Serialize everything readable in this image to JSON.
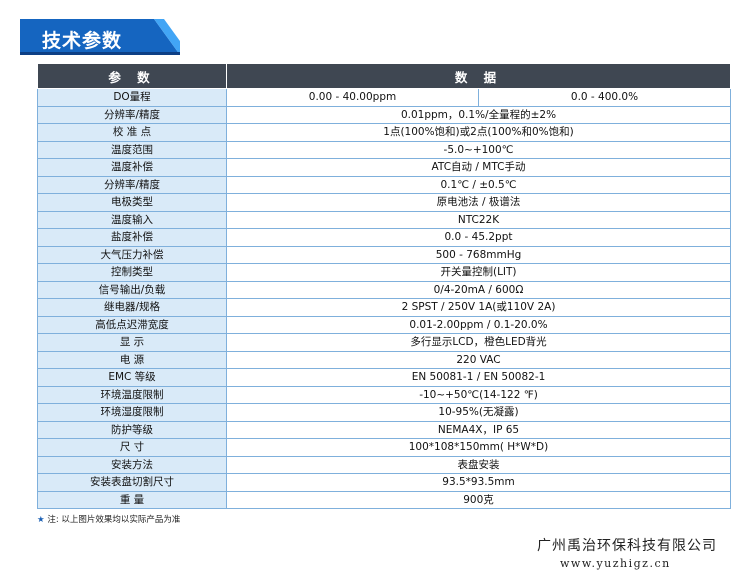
{
  "title": "技术参数",
  "table": {
    "headers": [
      "参  数",
      "数  据"
    ],
    "do_range": {
      "label": "DO量程",
      "value1": "0.00 - 40.00ppm",
      "value2": "0.0 - 400.0%"
    },
    "rows": [
      {
        "label": "分辨率/精度",
        "value": "0.01ppm，0.1%/全量程的±2%"
      },
      {
        "label": "校 准 点",
        "value": "1点(100%饱和)或2点(100%和0%饱和)"
      },
      {
        "label": "温度范围",
        "value": "-5.0~+100℃"
      },
      {
        "label": "温度补偿",
        "value": "ATC自动 / MTC手动"
      },
      {
        "label": "分辨率/精度",
        "value": "0.1℃ / ±0.5℃"
      },
      {
        "label": "电极类型",
        "value": "原电池法 / 极谱法"
      },
      {
        "label": "温度输入",
        "value": "NTC22K"
      },
      {
        "label": "盐度补偿",
        "value": "0.0 - 45.2ppt"
      },
      {
        "label": "大气压力补偿",
        "value": "500 - 768mmHg"
      },
      {
        "label": "控制类型",
        "value": "开关量控制(LIT)"
      },
      {
        "label": "信号输出/负载",
        "value": "0/4-20mA / 600Ω"
      },
      {
        "label": "继电器/规格",
        "value": "2 SPST / 250V 1A(或110V 2A)"
      },
      {
        "label": "高低点迟滞宽度",
        "value": "0.01-2.00ppm / 0.1-20.0%"
      },
      {
        "label": "显    示",
        "value": "多行显示LCD，橙色LED背光"
      },
      {
        "label": "电    源",
        "value": "220 VAC"
      },
      {
        "label": "EMC 等级",
        "value": "EN 50081-1 / EN 50082-1"
      },
      {
        "label": "环境温度限制",
        "value": "-10~+50℃(14-122 ℉)"
      },
      {
        "label": "环境湿度限制",
        "value": "10-95%(无凝露)"
      },
      {
        "label": "防护等级",
        "value": "NEMA4X，IP 65"
      },
      {
        "label": "尺    寸",
        "value": "100*108*150mm( H*W*D)"
      },
      {
        "label": "安装方法",
        "value": "表盘安装"
      },
      {
        "label": "安装表盘切割尺寸",
        "value": "93.5*93.5mm"
      },
      {
        "label": "重    量",
        "value": "900克"
      }
    ]
  },
  "footnote": {
    "star": "★",
    "text": "注: 以上图片效果均以实际产品为准"
  },
  "company": "广州禹治环保科技有限公司",
  "website": "www.yuzhigz.cn",
  "colors": {
    "banner": "#1565c0",
    "banner_accent": "#42a5f5",
    "header_bg": "#3f4752",
    "label_bg": "#d9eaf8",
    "border": "#7fb0dc"
  }
}
